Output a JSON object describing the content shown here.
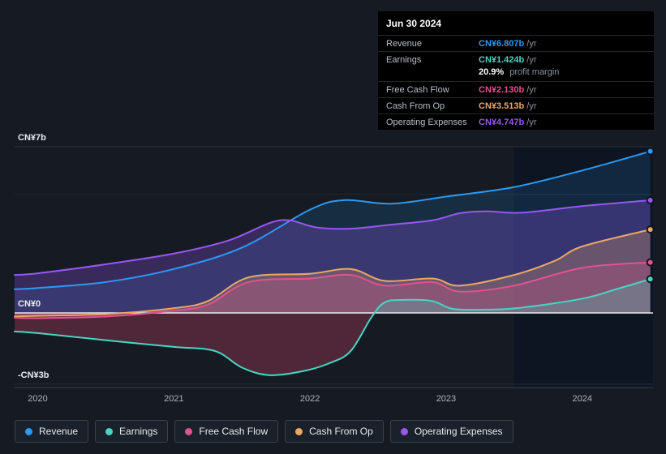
{
  "page": {
    "background": "#151a23"
  },
  "tooltip": {
    "date": "Jun 30 2024",
    "rows": [
      {
        "label": "Revenue",
        "value": "CN¥6.807b",
        "suffix": "/yr",
        "color": "#2b9af3"
      },
      {
        "label": "Earnings",
        "value": "CN¥1.424b",
        "suffix": "/yr",
        "color": "#47d6c3",
        "extra_value": "20.9%",
        "extra_label": "profit margin"
      },
      {
        "label": "Free Cash Flow",
        "value": "CN¥2.130b",
        "suffix": "/yr",
        "color": "#e2528f"
      },
      {
        "label": "Cash From Op",
        "value": "CN¥3.513b",
        "suffix": "/yr",
        "color": "#e9a864"
      },
      {
        "label": "Operating Expenses",
        "value": "CN¥4.747b",
        "suffix": "/yr",
        "color": "#9857f0"
      }
    ]
  },
  "legend": {
    "items": [
      {
        "label": "Revenue",
        "color": "#2b9af3"
      },
      {
        "label": "Earnings",
        "color": "#47d6c3"
      },
      {
        "label": "Free Cash Flow",
        "color": "#e2528f"
      },
      {
        "label": "Cash From Op",
        "color": "#e9a864"
      },
      {
        "label": "Operating Expenses",
        "color": "#9857f0"
      }
    ]
  },
  "chart_data": {
    "type": "area",
    "title": "Earnings and revenue history (CN¥ billions per year)",
    "x_range": [
      2019.83,
      2024.52
    ],
    "x_axis": {
      "ticks": [
        2020,
        2021,
        2022,
        2023,
        2024
      ]
    },
    "y_axis": {
      "ticks": [
        {
          "value": 7,
          "label": "CN¥7b"
        },
        {
          "value": 0,
          "label": "CN¥0"
        },
        {
          "value": -3,
          "label": "-CN¥3b"
        }
      ],
      "unlabeled_gridlines": [
        5
      ]
    },
    "highlight_region": {
      "start": 2023.5,
      "end": 2024.52
    },
    "legend_position": "bottom",
    "series": [
      {
        "name": "Revenue",
        "color": "#2b9af3",
        "fill_opacity": 0.15,
        "points": [
          [
            2019.83,
            1.0
          ],
          [
            2020,
            1.05
          ],
          [
            2020.5,
            1.3
          ],
          [
            2021,
            1.85
          ],
          [
            2021.5,
            2.75
          ],
          [
            2022,
            4.35
          ],
          [
            2022.25,
            4.75
          ],
          [
            2022.6,
            4.6
          ],
          [
            2023,
            4.9
          ],
          [
            2023.5,
            5.3
          ],
          [
            2024,
            6.0
          ],
          [
            2024.5,
            6.807
          ]
        ]
      },
      {
        "name": "Operating Expenses",
        "color": "#9857f0",
        "fill_opacity": 0.28,
        "points": [
          [
            2019.83,
            1.6
          ],
          [
            2020,
            1.67
          ],
          [
            2020.5,
            2.05
          ],
          [
            2021,
            2.5
          ],
          [
            2021.4,
            3.05
          ],
          [
            2021.7,
            3.78
          ],
          [
            2021.85,
            3.9
          ],
          [
            2022.05,
            3.6
          ],
          [
            2022.3,
            3.55
          ],
          [
            2022.6,
            3.72
          ],
          [
            2022.9,
            3.9
          ],
          [
            2023.1,
            4.2
          ],
          [
            2023.3,
            4.28
          ],
          [
            2023.55,
            4.22
          ],
          [
            2024,
            4.5
          ],
          [
            2024.5,
            4.747
          ]
        ]
      },
      {
        "name": "Cash From Op",
        "color": "#e9a864",
        "fill_opacity": 0.28,
        "points": [
          [
            2019.83,
            -0.15
          ],
          [
            2020,
            -0.12
          ],
          [
            2020.5,
            -0.05
          ],
          [
            2021,
            0.2
          ],
          [
            2021.25,
            0.5
          ],
          [
            2021.55,
            1.5
          ],
          [
            2022,
            1.65
          ],
          [
            2022.3,
            1.85
          ],
          [
            2022.55,
            1.35
          ],
          [
            2022.9,
            1.45
          ],
          [
            2023.1,
            1.15
          ],
          [
            2023.5,
            1.6
          ],
          [
            2023.8,
            2.2
          ],
          [
            2024,
            2.8
          ],
          [
            2024.5,
            3.513
          ]
        ]
      },
      {
        "name": "Free Cash Flow",
        "color": "#e2528f",
        "fill_opacity": 0.26,
        "points": [
          [
            2019.83,
            -0.2
          ],
          [
            2020,
            -0.22
          ],
          [
            2020.5,
            -0.15
          ],
          [
            2021,
            0.1
          ],
          [
            2021.25,
            0.35
          ],
          [
            2021.55,
            1.3
          ],
          [
            2022,
            1.45
          ],
          [
            2022.3,
            1.6
          ],
          [
            2022.55,
            1.15
          ],
          [
            2022.9,
            1.3
          ],
          [
            2023.1,
            0.9
          ],
          [
            2023.5,
            1.15
          ],
          [
            2024,
            1.9
          ],
          [
            2024.5,
            2.13
          ]
        ]
      },
      {
        "name": "Earnings",
        "color": "#47d6c3",
        "fill_opacity": 0.25,
        "negative_fill": "#d8446b",
        "points": [
          [
            2019.83,
            -0.78
          ],
          [
            2020,
            -0.85
          ],
          [
            2020.5,
            -1.15
          ],
          [
            2021,
            -1.43
          ],
          [
            2021.3,
            -1.6
          ],
          [
            2021.5,
            -2.3
          ],
          [
            2021.7,
            -2.62
          ],
          [
            2021.95,
            -2.45
          ],
          [
            2022.15,
            -2.1
          ],
          [
            2022.3,
            -1.6
          ],
          [
            2022.45,
            -0.2
          ],
          [
            2022.55,
            0.45
          ],
          [
            2022.7,
            0.55
          ],
          [
            2022.9,
            0.5
          ],
          [
            2023.05,
            0.17
          ],
          [
            2023.3,
            0.14
          ],
          [
            2023.55,
            0.22
          ],
          [
            2024,
            0.6
          ],
          [
            2024.25,
            1.0
          ],
          [
            2024.5,
            1.424
          ]
        ]
      }
    ]
  }
}
